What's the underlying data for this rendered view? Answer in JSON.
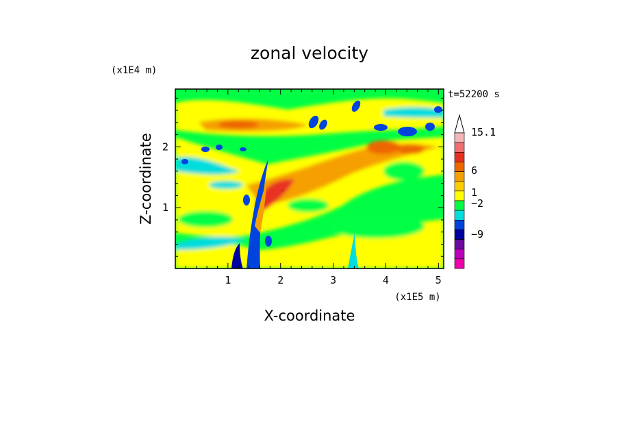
{
  "chart_data": {
    "type": "heatmap",
    "title": "zonal velocity",
    "xlabel": "X-coordinate",
    "ylabel": "Z-coordinate",
    "x_unit": "(x1E5 m)",
    "y_unit": "(x1E4 m)",
    "time_label": "t=52200 s",
    "xlim": [
      0,
      5.1
    ],
    "ylim": [
      0,
      2.95
    ],
    "x_ticks": [
      "1",
      "2",
      "3",
      "4",
      "5"
    ],
    "y_ticks": [
      "1",
      "2"
    ],
    "colorbar": {
      "labels": [
        "15.1",
        "6",
        "1",
        "−2",
        "−9"
      ],
      "colors_top_to_bottom": [
        "#ffffff",
        "#f4b6b6",
        "#ee7070",
        "#e83020",
        "#ee6600",
        "#f5a000",
        "#ffcc00",
        "#ffff00",
        "#00ff44",
        "#00dddd",
        "#0044dd",
        "#0000a0",
        "#6a0aa0",
        "#bb00bb",
        "#ee00aa"
      ]
    },
    "background_value": "green (~0)",
    "features": [
      {
        "label": "upper jet",
        "x": 2.5,
        "z": 2.4,
        "value": 4
      },
      {
        "label": "strong positive core",
        "x": 1.8,
        "z": 1.2,
        "value": 8
      },
      {
        "label": "mountain wave at x~1.5",
        "x": 1.5,
        "z": 0.5,
        "value": -6
      },
      {
        "label": "mountain wave at x~3.4",
        "x": 3.4,
        "z": 0.3,
        "value": -3
      }
    ]
  }
}
